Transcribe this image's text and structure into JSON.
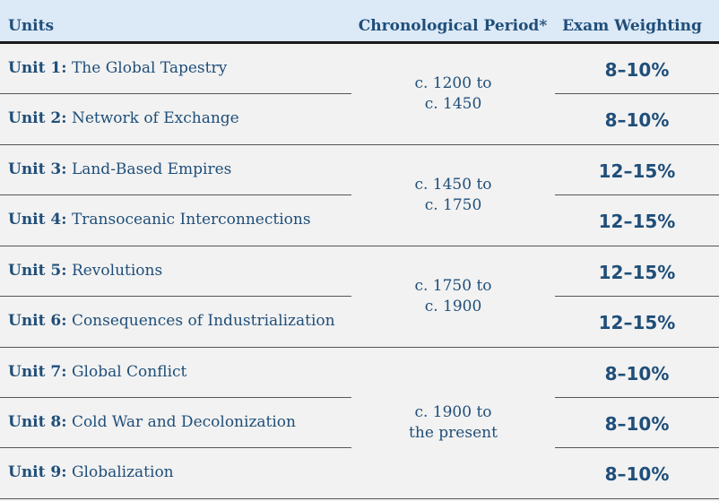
{
  "headers": {
    "units": "Units",
    "period": "Chronological Period*",
    "weighting": "Exam Weighting"
  },
  "rows": [
    {
      "label": "Unit 1:",
      "name": "The Global Tapestry",
      "weight": "8–10%"
    },
    {
      "label": "Unit 2:",
      "name": "Network of Exchange",
      "weight": "8–10%"
    },
    {
      "label": "Unit 3:",
      "name": "Land-Based Empires",
      "weight": "12–15%"
    },
    {
      "label": "Unit 4:",
      "name": "Transoceanic Interconnections",
      "weight": "12–15%"
    },
    {
      "label": "Unit 5:",
      "name": "Revolutions",
      "weight": "12–15%"
    },
    {
      "label": "Unit 6:",
      "name": "Consequences of Industrialization",
      "weight": "12–15%"
    },
    {
      "label": "Unit 7:",
      "name": "Global Conflict",
      "weight": "8–10%"
    },
    {
      "label": "Unit 8:",
      "name": "Cold War and Decolonization",
      "weight": "8–10%"
    },
    {
      "label": "Unit 9:",
      "name": "Globalization",
      "weight": "8–10%"
    }
  ],
  "periods": [
    {
      "line1": "c. 1200 to",
      "line2": "c. 1450"
    },
    {
      "line1": "c. 1450 to",
      "line2": "c. 1750"
    },
    {
      "line1": "c. 1750 to",
      "line2": "c. 1900"
    },
    {
      "line1": "c. 1900 to",
      "line2": "the present"
    }
  ],
  "colors": {
    "header_bg": "#dce9f7",
    "text": "#1f4e79",
    "body_bg": "#f2f2f2"
  }
}
